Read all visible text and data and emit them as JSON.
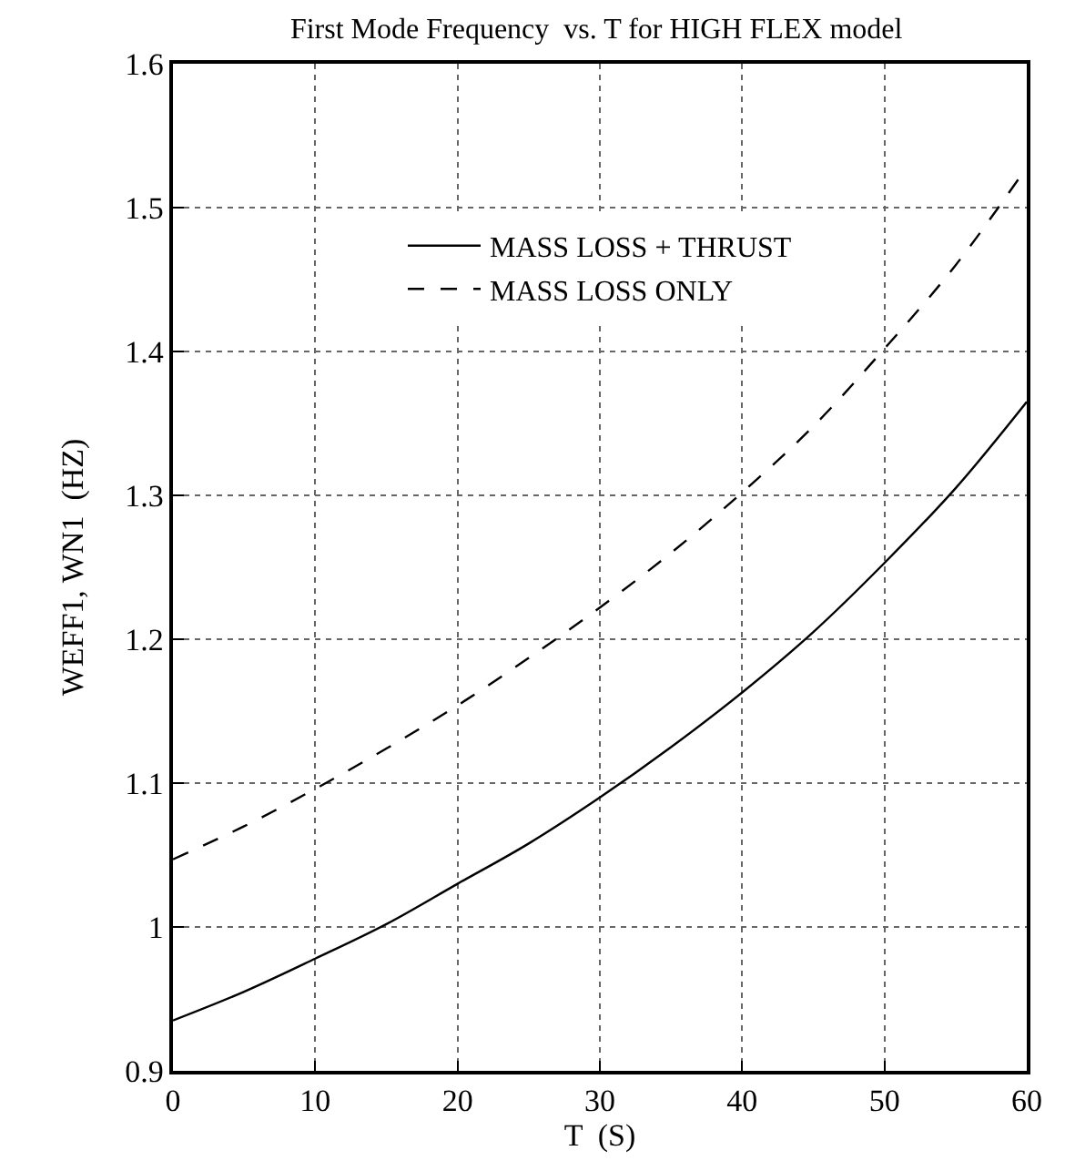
{
  "chart_data": {
    "type": "line",
    "title": "First Mode Frequency  vs. T for HIGH FLEX model",
    "xlabel": "T  (S)",
    "ylabel": "WEFF1, WN1  (HZ)",
    "x": [
      0,
      5,
      10,
      15,
      20,
      25,
      30,
      35,
      40,
      45,
      50,
      55,
      60
    ],
    "series": [
      {
        "name": "MASS LOSS + THRUST",
        "color": "#000000",
        "line_style": "solid",
        "values": [
          0.935,
          0.955,
          0.978,
          1.002,
          1.03,
          1.058,
          1.09,
          1.125,
          1.163,
          1.205,
          1.253,
          1.305,
          1.365
        ]
      },
      {
        "name": "MASS LOSS ONLY",
        "color": "#000000",
        "line_style": "dashed",
        "values": [
          1.047,
          1.07,
          1.096,
          1.124,
          1.154,
          1.187,
          1.222,
          1.26,
          1.302,
          1.348,
          1.402,
          1.46,
          1.528
        ]
      }
    ],
    "xlim": [
      0,
      60
    ],
    "xticks": [
      0,
      10,
      20,
      30,
      40,
      50,
      60
    ],
    "ylim": [
      0.9,
      1.6
    ],
    "yticks": [
      0.9,
      1,
      1.1,
      1.2,
      1.3,
      1.4,
      1.5,
      1.6
    ],
    "grid": true,
    "legend": "top",
    "marker": "none"
  }
}
